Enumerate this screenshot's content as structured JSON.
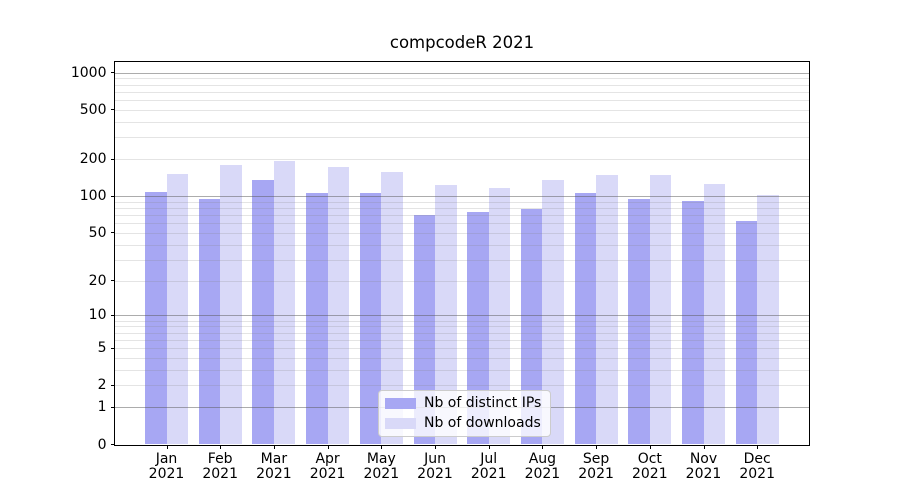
{
  "title": "compcodeR 2021",
  "chart_data": {
    "type": "bar",
    "title": "compcodeR 2021",
    "categories": [
      "Jan 2021",
      "Feb 2021",
      "Mar 2021",
      "Apr 2021",
      "May 2021",
      "Jun 2021",
      "Jul 2021",
      "Aug 2021",
      "Sep 2021",
      "Oct 2021",
      "Nov 2021",
      "Dec 2021"
    ],
    "series": [
      {
        "name": "Nb of distinct IPs",
        "color": "#a7a7f3",
        "values": [
          107,
          94,
          136,
          105,
          106,
          70,
          74,
          78,
          105,
          94,
          92,
          63
        ]
      },
      {
        "name": "Nb of downloads",
        "color": "#d9d9f8",
        "values": [
          152,
          179,
          192,
          173,
          158,
          122,
          117,
          134,
          149,
          148,
          125,
          103
        ]
      }
    ],
    "y_scale": "log10(1+x)",
    "y_ticks": [
      0,
      1,
      2,
      5,
      10,
      20,
      50,
      100,
      200,
      500,
      1000
    ],
    "ylim": [
      0,
      1250
    ],
    "xlabel": "",
    "ylabel": "",
    "grid": "both, drawn over bars",
    "grid_major_color": "#b0b0b0",
    "grid_minor_color": "#e3e3e3",
    "legend_position": "lower center",
    "axis_color": "#000000",
    "background": "#ffffff"
  }
}
